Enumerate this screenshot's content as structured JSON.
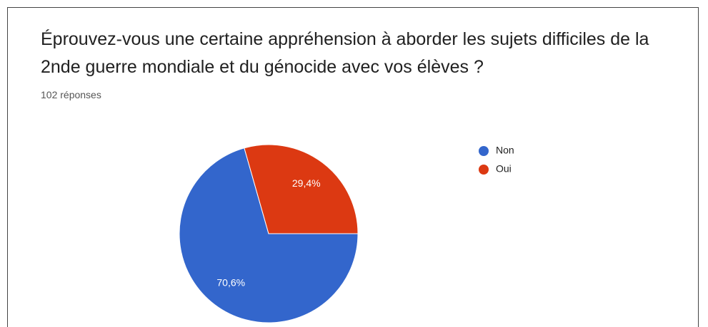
{
  "chart_data": {
    "type": "pie",
    "title": "Éprouvez-vous une certaine appréhension à aborder les sujets difficiles de la 2nde guerre mondiale et du génocide avec vos élèves ?",
    "subtitle": "102 réponses",
    "categories": [
      "Non",
      "Oui"
    ],
    "values": [
      70.6,
      29.4
    ],
    "value_labels": [
      "70,6%",
      "29,4%"
    ],
    "colors": [
      "#3366cc",
      "#dc3912"
    ],
    "legend": "right"
  }
}
